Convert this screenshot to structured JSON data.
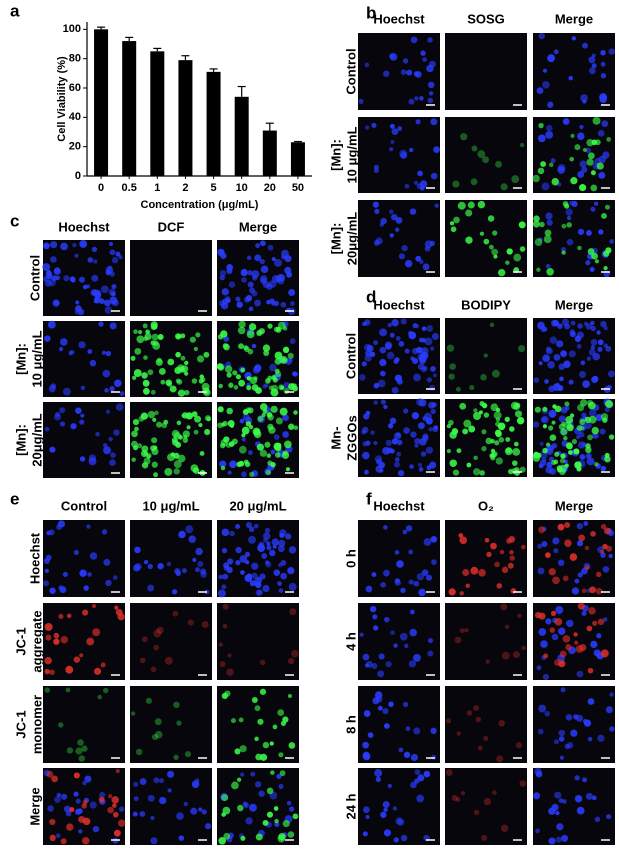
{
  "chart_data": {
    "type": "bar",
    "panel_label": "a",
    "x_label": "Concentration (μg/mL)",
    "y_label": "Cell Viability (%)",
    "categories": [
      "0",
      "0.5",
      "1",
      "2",
      "5",
      "10",
      "20",
      "50"
    ],
    "values": [
      100,
      92,
      85,
      79,
      71,
      54,
      31,
      23
    ],
    "errors": [
      1.5,
      2.5,
      2,
      3,
      2,
      7,
      5,
      0.5
    ],
    "color": "#000000",
    "ylim": [
      0,
      105
    ],
    "yticks": [
      0,
      20,
      40,
      60,
      80,
      100
    ],
    "grid": false
  },
  "panels": {
    "b": {
      "label": "b",
      "columns": [
        "Hoechst",
        "SOSG",
        "Merge"
      ],
      "rows": [
        [
          "Control"
        ],
        [
          "[Mn]:",
          "10 μg/mL"
        ],
        [
          "[Mn]:",
          "20μg/mL"
        ]
      ]
    },
    "c": {
      "label": "c",
      "columns": [
        "Hoechst",
        "DCF",
        "Merge"
      ],
      "rows": [
        [
          "Control"
        ],
        [
          "[Mn]:",
          "10 μg/mL"
        ],
        [
          "[Mn]:",
          "20μg/mL"
        ]
      ]
    },
    "d": {
      "label": "d",
      "columns": [
        "Hoechst",
        "BODIPY",
        "Merge"
      ],
      "rows": [
        [
          "Control"
        ],
        [
          "Mn-",
          "ZGGOs"
        ]
      ]
    },
    "e": {
      "label": "e",
      "columns": [
        "Control",
        "10 μg/mL",
        "20 μg/mL"
      ],
      "rows": [
        [
          "Hoechst"
        ],
        [
          "JC-1",
          "aggregate"
        ],
        [
          "JC-1",
          "monomer"
        ],
        [
          "Merge"
        ]
      ]
    },
    "f": {
      "label": "f",
      "columns": [
        "Hoechst",
        "O₂",
        "Merge"
      ],
      "rows": [
        [
          "0 h"
        ],
        [
          "4 h"
        ],
        [
          "8 h"
        ],
        [
          "24 h"
        ]
      ]
    }
  }
}
